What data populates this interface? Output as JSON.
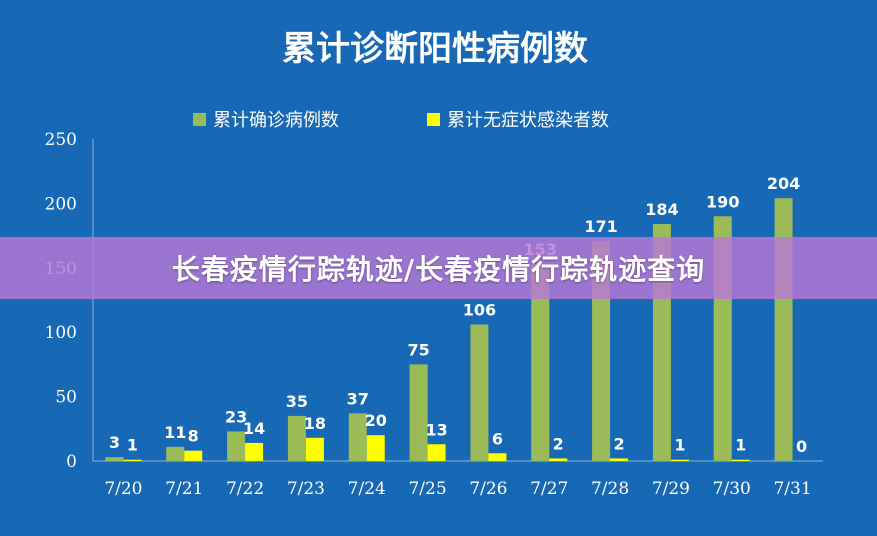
{
  "banner": {
    "text": "长春疫情行踪轨迹/长春疫情行踪轨迹查询"
  },
  "colors": {
    "background": "#1769b5",
    "confirmed": "#9bbb59",
    "asymptomatic": "#ffff00",
    "banner": "#ba78d7"
  },
  "chart_data": {
    "type": "bar",
    "title": "累计诊断阳性病例数",
    "categories": [
      "7/20",
      "7/21",
      "7/22",
      "7/23",
      "7/24",
      "7/25",
      "7/26",
      "7/27",
      "7/28",
      "7/29",
      "7/30",
      "7/31"
    ],
    "series": [
      {
        "name": "累计确诊病例数",
        "color": "#9bbb59",
        "values": [
          3,
          11,
          23,
          35,
          37,
          75,
          106,
          153,
          171,
          184,
          190,
          204
        ]
      },
      {
        "name": "累计无症状感染者数",
        "color": "#ffff00",
        "values": [
          1,
          8,
          14,
          18,
          20,
          13,
          6,
          2,
          2,
          1,
          1,
          0
        ]
      }
    ],
    "yticks": [
      "0",
      "50",
      "100",
      "150",
      "200",
      "250"
    ],
    "ylim": [
      0,
      250
    ],
    "grid": false,
    "legend": "top-center",
    "data_labels": true
  }
}
